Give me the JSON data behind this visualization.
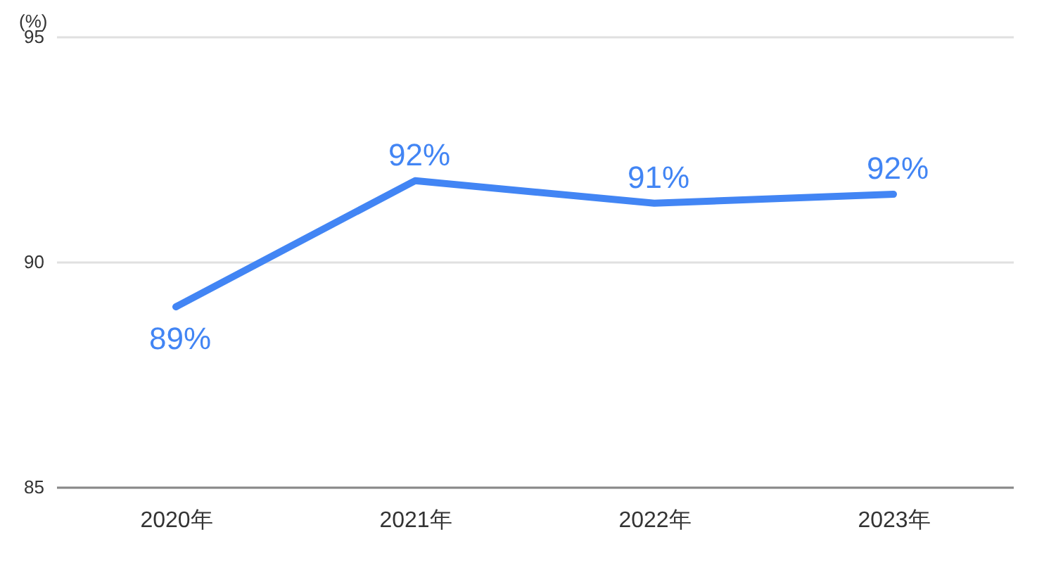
{
  "chart_data": {
    "type": "line",
    "ylabel": "(%)",
    "categories": [
      "2020年",
      "2021年",
      "2022年",
      "2023年"
    ],
    "values": [
      89.0,
      91.8,
      91.3,
      91.5
    ],
    "value_labels": [
      "89%",
      "92%",
      "91%",
      "92%"
    ],
    "color": "#4285f4",
    "line_style": "solid",
    "ylim": [
      85,
      95
    ],
    "yticks": [
      85,
      90,
      95
    ],
    "grid": "y"
  }
}
